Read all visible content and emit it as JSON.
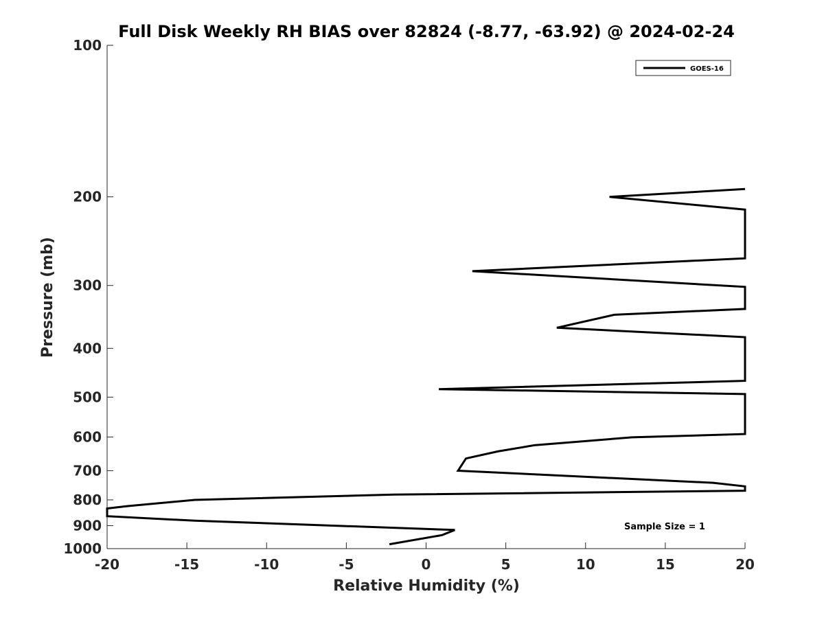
{
  "chart_data": {
    "type": "line",
    "title": "Full Disk Weekly RH BIAS over 82824 (-8.77, -63.92) @ 2024-02-24",
    "xlabel": "Relative Humidity (%)",
    "ylabel": "Pressure (mb)",
    "xlim": [
      -20,
      20
    ],
    "ylim": [
      100,
      1000
    ],
    "y_scale": "log",
    "y_reversed": true,
    "grid": false,
    "xticks": [
      -20,
      -15,
      -10,
      -5,
      0,
      5,
      10,
      15,
      20
    ],
    "yticks": [
      100,
      200,
      300,
      400,
      500,
      600,
      700,
      800,
      900,
      1000
    ],
    "legend_position": "top-right",
    "annotation": "Sample Size = 1",
    "series": [
      {
        "name": "GOES-16",
        "color": "#000000",
        "points": [
          {
            "x": 20,
            "y": 193
          },
          {
            "x": 11.5,
            "y": 200
          },
          {
            "x": 20,
            "y": 212
          },
          {
            "x": 20,
            "y": 265
          },
          {
            "x": 2.9,
            "y": 281
          },
          {
            "x": 20,
            "y": 302
          },
          {
            "x": 20,
            "y": 334
          },
          {
            "x": 11.8,
            "y": 343
          },
          {
            "x": 8.2,
            "y": 364
          },
          {
            "x": 20,
            "y": 380
          },
          {
            "x": 20,
            "y": 464
          },
          {
            "x": 0.8,
            "y": 482
          },
          {
            "x": 20,
            "y": 493
          },
          {
            "x": 20,
            "y": 592
          },
          {
            "x": 12.9,
            "y": 601
          },
          {
            "x": 6.8,
            "y": 623
          },
          {
            "x": 4.5,
            "y": 641
          },
          {
            "x": 2.5,
            "y": 662
          },
          {
            "x": 2.0,
            "y": 700
          },
          {
            "x": 18.0,
            "y": 740
          },
          {
            "x": 20,
            "y": 752
          },
          {
            "x": 20,
            "y": 767
          },
          {
            "x": -2.0,
            "y": 781
          },
          {
            "x": -14.5,
            "y": 800
          },
          {
            "x": -18.7,
            "y": 823
          },
          {
            "x": -20,
            "y": 832
          },
          {
            "x": -20,
            "y": 862
          },
          {
            "x": -14.5,
            "y": 880
          },
          {
            "x": 1.8,
            "y": 918
          },
          {
            "x": 1.0,
            "y": 940
          },
          {
            "x": -2.3,
            "y": 980
          }
        ]
      }
    ]
  }
}
